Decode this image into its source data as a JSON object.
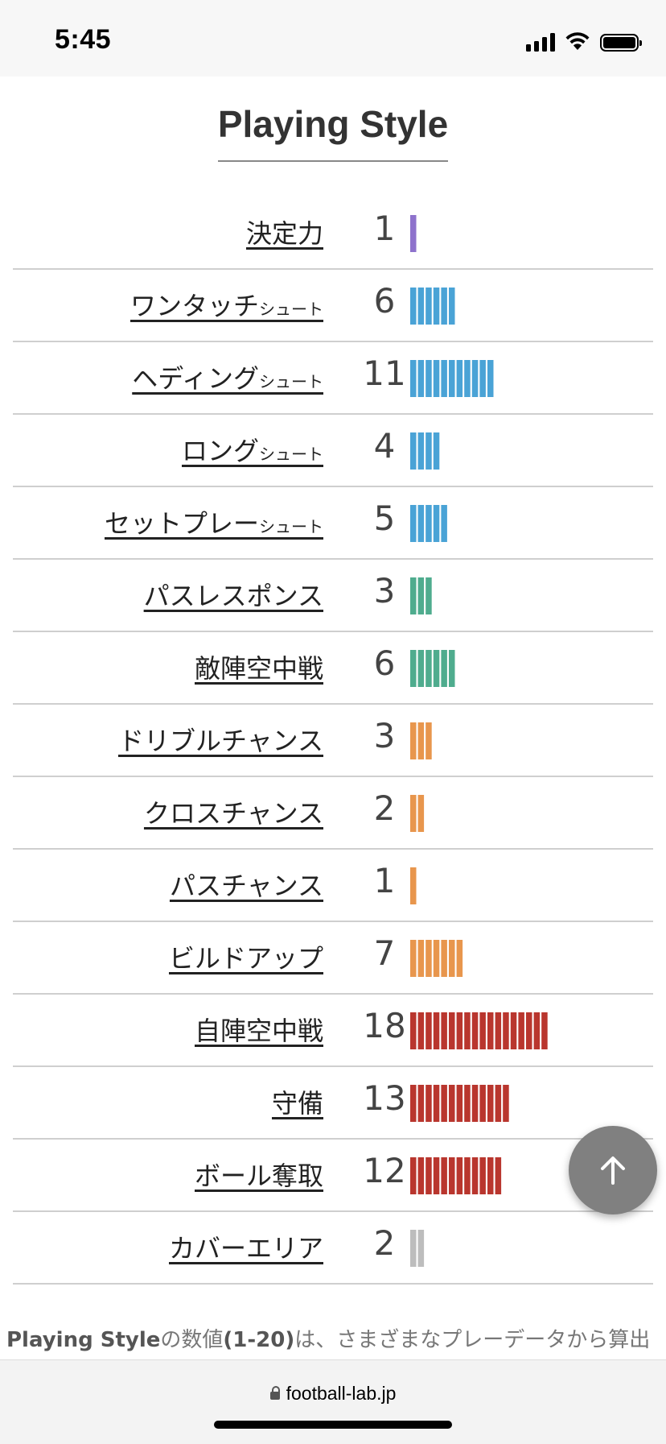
{
  "status_bar": {
    "time": "5:45"
  },
  "title": "Playing Style",
  "rows": [
    {
      "label": "決定力",
      "sub": "",
      "value": "1",
      "count": 1,
      "color": "#8e72cc"
    },
    {
      "label": "ワンタッチ",
      "sub": "シュート",
      "value": "6",
      "count": 6,
      "color": "#4aa3d6"
    },
    {
      "label": "ヘディング",
      "sub": "シュート",
      "value": "11",
      "count": 11,
      "color": "#4aa3d6"
    },
    {
      "label": "ロング",
      "sub": "シュート",
      "value": "4",
      "count": 4,
      "color": "#4aa3d6"
    },
    {
      "label": "セットプレー",
      "sub": "シュート",
      "value": "5",
      "count": 5,
      "color": "#4aa3d6"
    },
    {
      "label": "パスレスポンス",
      "sub": "",
      "value": "3",
      "count": 3,
      "color": "#4fac8e"
    },
    {
      "label": "敵陣空中戦",
      "sub": "",
      "value": "6",
      "count": 6,
      "color": "#4fac8e"
    },
    {
      "label": "ドリブルチャンス",
      "sub": "",
      "value": "3",
      "count": 3,
      "color": "#e8964d"
    },
    {
      "label": "クロスチャンス",
      "sub": "",
      "value": "2",
      "count": 2,
      "color": "#e8964d"
    },
    {
      "label": "パスチャンス",
      "sub": "",
      "value": "1",
      "count": 1,
      "color": "#e8964d"
    },
    {
      "label": "ビルドアップ",
      "sub": "",
      "value": "7",
      "count": 7,
      "color": "#e8964d"
    },
    {
      "label": "自陣空中戦",
      "sub": "",
      "value": "18",
      "count": 18,
      "color": "#b9362e"
    },
    {
      "label": "守備",
      "sub": "",
      "value": "13",
      "count": 13,
      "color": "#b9362e"
    },
    {
      "label": "ボール奪取",
      "sub": "",
      "value": "12",
      "count": 12,
      "color": "#b9362e"
    },
    {
      "label": "カバーエリア",
      "sub": "",
      "value": "2",
      "count": 2,
      "color": "#bdbdbd"
    }
  ],
  "footnote": {
    "bold1": "Playing Style",
    "text1": "の数値",
    "bold2": "(1-20)",
    "text2": "は、さまざまなプレーデータから算出"
  },
  "url": "football-lab.jp"
}
